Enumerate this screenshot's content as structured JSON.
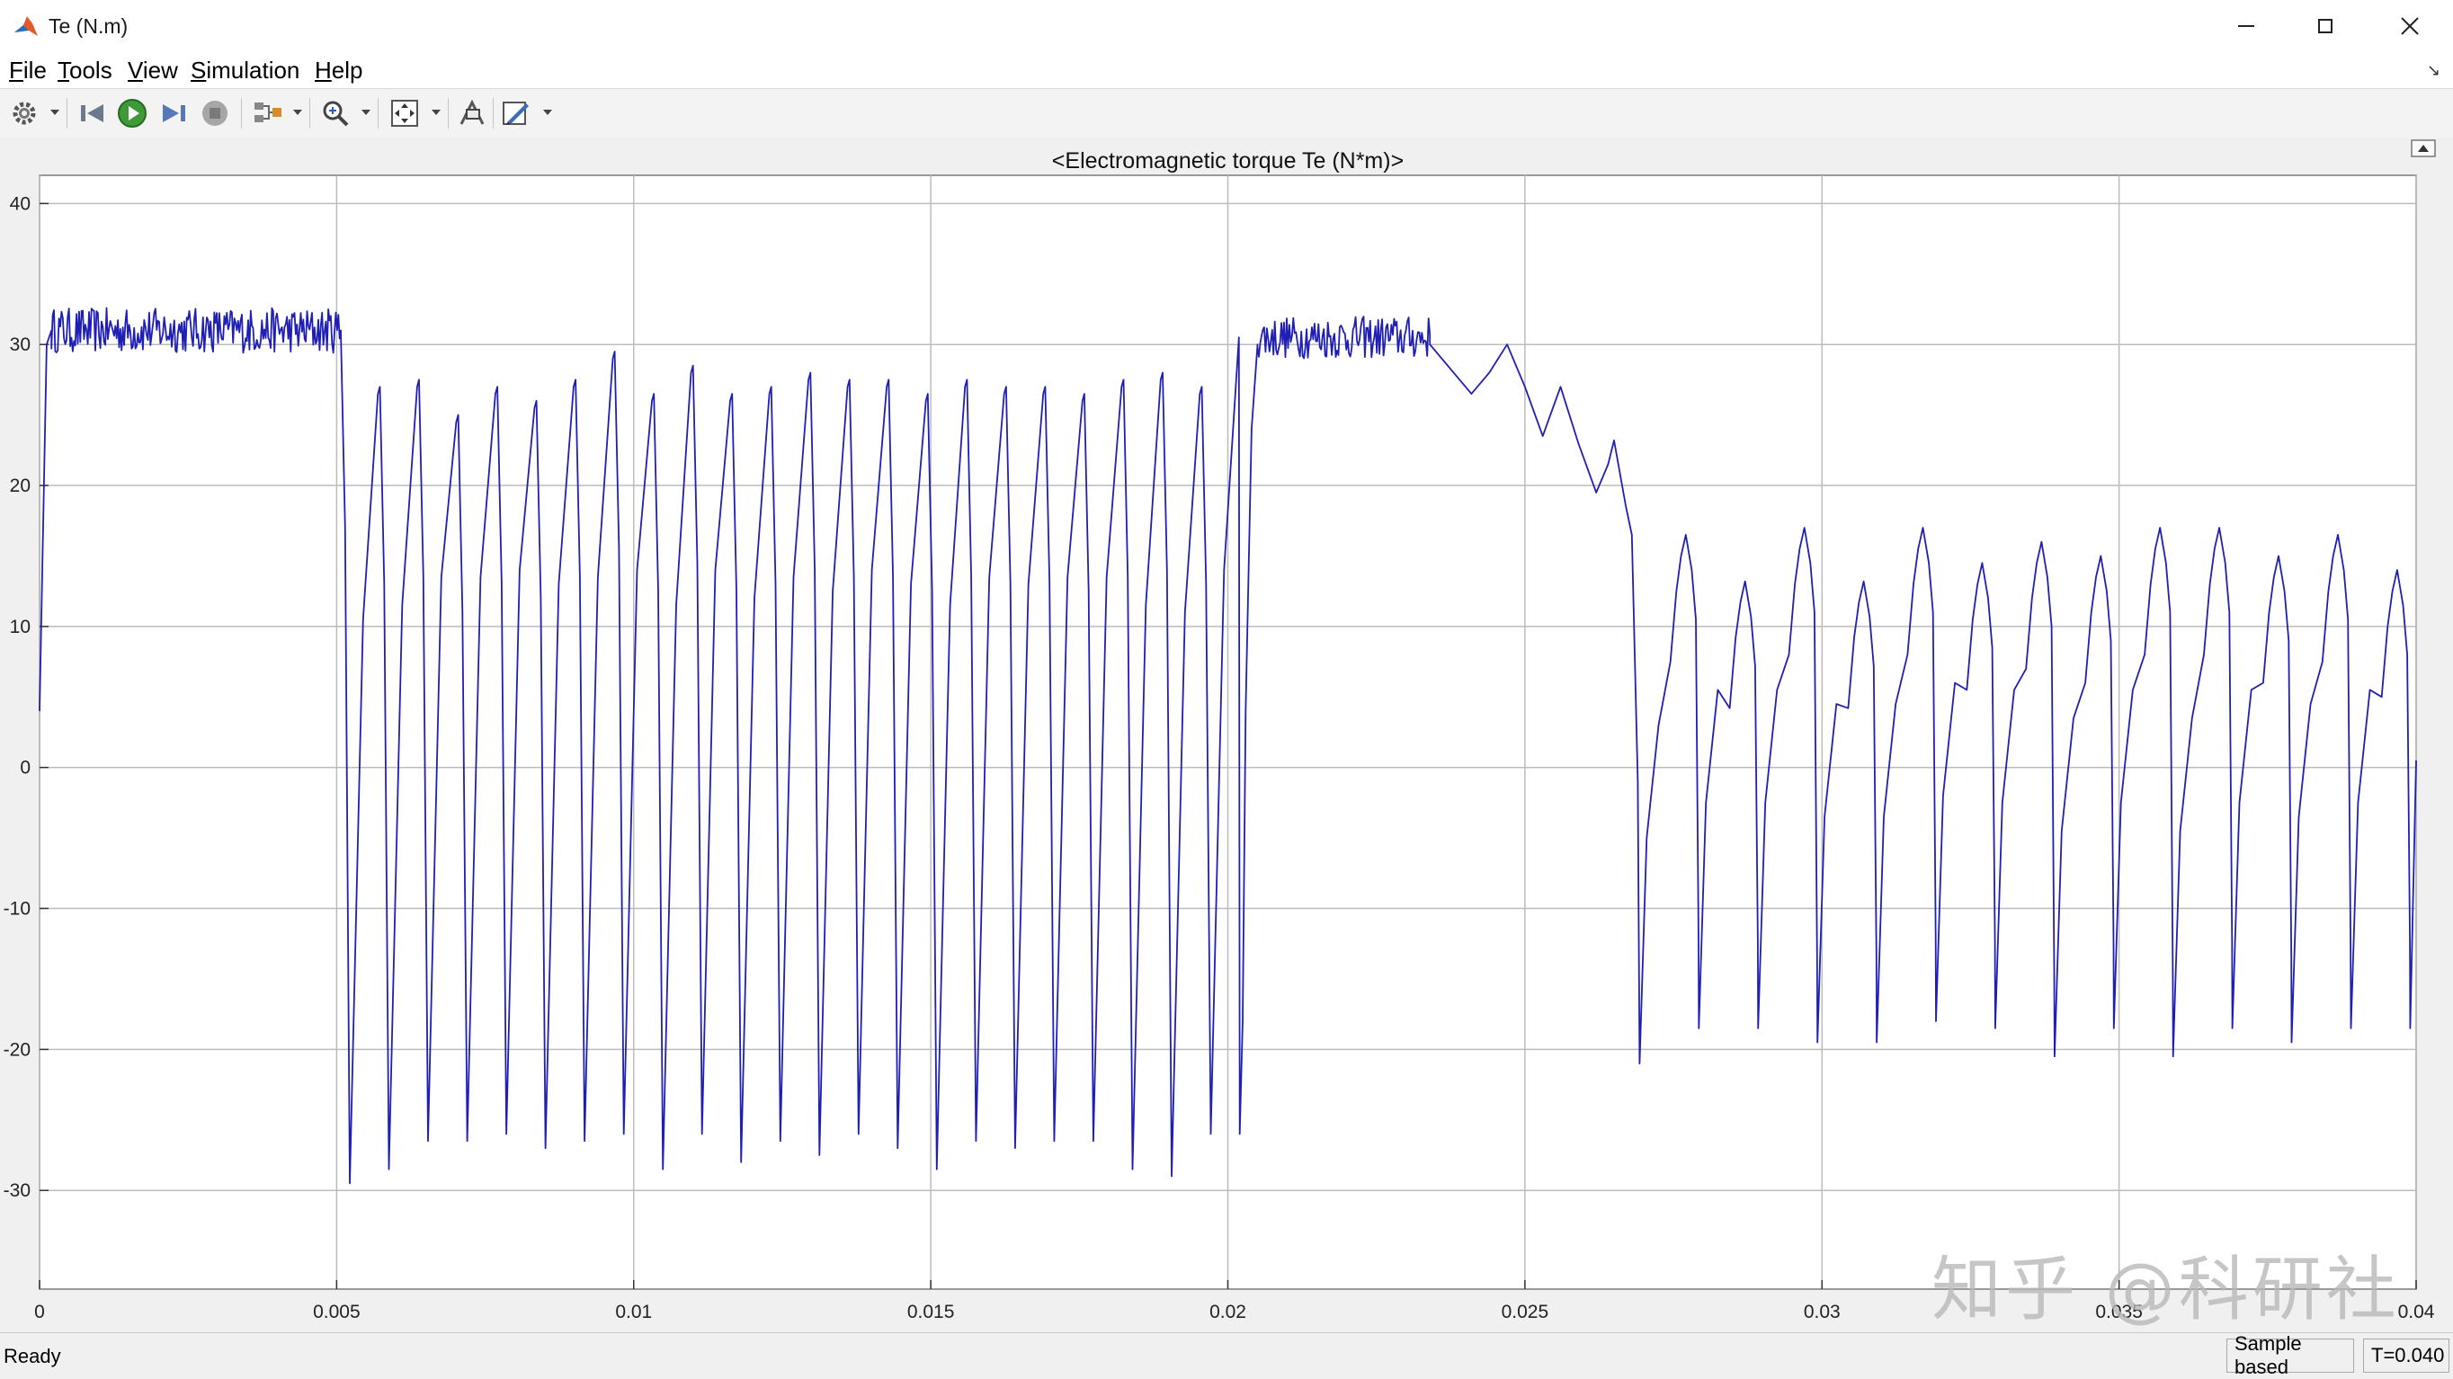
{
  "window": {
    "title": "Te (N.m)"
  },
  "menu": [
    {
      "label": "File",
      "u": "F",
      "rest": "ile"
    },
    {
      "label": "Tools",
      "u": "T",
      "rest": "ools"
    },
    {
      "label": "View",
      "u": "V",
      "rest": "iew"
    },
    {
      "label": "Simulation",
      "u": "S",
      "rest": "imulation"
    },
    {
      "label": "Help",
      "u": "H",
      "rest": "elp"
    }
  ],
  "toolbar": {
    "icons": [
      "gear-icon",
      "step-back-icon",
      "run-icon",
      "step-forward-icon",
      "stop-icon",
      "highlight-block-icon",
      "zoom-icon",
      "autoscale-icon",
      "restore-view-icon",
      "style-icon"
    ]
  },
  "status": {
    "text": "Ready",
    "mode": "Sample based",
    "time": "T=0.040"
  },
  "watermark": "知乎 @科研社",
  "colors": {
    "trace": "#1f1fb5",
    "grid": "#bcbcbc",
    "axes_bg": "#ffffff"
  },
  "chart_data": {
    "type": "line",
    "title": "<Electromagnetic torque Te (N*m)>",
    "xlabel": "",
    "ylabel": "",
    "xlim": [
      0,
      0.04
    ],
    "ylim": [
      -37,
      42
    ],
    "xticks": [
      0,
      0.005,
      0.01,
      0.015,
      0.02,
      0.025,
      0.03,
      0.035,
      0.04
    ],
    "xtick_labels": [
      "0",
      "0.005",
      "0.01",
      "0.015",
      "0.02",
      "0.025",
      "0.03",
      "0.035",
      "0.04"
    ],
    "yticks": [
      40,
      30,
      20,
      10,
      0,
      -10,
      -20,
      -30
    ],
    "ytick_labels": [
      "40",
      "30",
      "20",
      "10",
      "0",
      "-10",
      "-20",
      "-30"
    ],
    "grid": true,
    "series": [
      {
        "segments": [
          {
            "kind": "line",
            "points": [
              [
                0,
                4
              ],
              [
                0.00012,
                30
              ],
              [
                0.0002,
                31
              ]
            ]
          },
          {
            "kind": "noise",
            "start": 0.0002,
            "end": 0.00505,
            "center": 31,
            "amp": 1.6,
            "count": 230
          },
          {
            "kind": "osc",
            "start": 0.00505,
            "end": 0.0202,
            "peaks": [
              31,
              27,
              27.5,
              25,
              27,
              26,
              27.5,
              29.5,
              26.5,
              28.5,
              26.5,
              27,
              28,
              27.5,
              27.5,
              26.5,
              27.5,
              27,
              27,
              26.5,
              27.5,
              28,
              27
            ],
            "troughs": [
              -29.5,
              -28.5,
              -26.5,
              -26.5,
              -26,
              -27,
              -26.5,
              -26,
              -28.5,
              -26,
              -28,
              -26.5,
              -27.5,
              -26,
              -27,
              -28.5,
              -26.5,
              -27,
              -26.5,
              -26.5,
              -28.5,
              -29,
              -26
            ]
          },
          {
            "kind": "line",
            "points": [
              [
                0.0202,
                -26
              ],
              [
                0.02025,
                -18
              ],
              [
                0.0203,
                4
              ],
              [
                0.0204,
                24
              ],
              [
                0.0205,
                30
              ]
            ]
          },
          {
            "kind": "noise",
            "start": 0.0205,
            "end": 0.0234,
            "center": 30.5,
            "amp": 1.5,
            "count": 130
          },
          {
            "kind": "line",
            "points": [
              [
                0.0234,
                30
              ],
              [
                0.0238,
                28
              ],
              [
                0.0241,
                26.5
              ],
              [
                0.0244,
                28
              ],
              [
                0.0247,
                30
              ],
              [
                0.025,
                27
              ],
              [
                0.0253,
                23.5
              ],
              [
                0.0256,
                27
              ],
              [
                0.0259,
                23
              ],
              [
                0.0262,
                19.5
              ],
              [
                0.0264,
                21.5
              ],
              [
                0.0265,
                23.2
              ],
              [
                0.0267,
                18.5
              ],
              [
                0.0268,
                16.5
              ],
              [
                0.0269,
                -1
              ],
              [
                0.02693,
                -21
              ]
            ]
          },
          {
            "kind": "saw",
            "start": 0.02693,
            "end": 0.0399,
            "peaks": [
              16.5,
              13.2,
              17,
              13.2,
              17,
              14.5,
              16,
              15,
              17,
              17,
              15,
              16.5,
              14
            ],
            "troughs": [
              -21,
              -18.5,
              -18.5,
              -19.5,
              -19.5,
              -18,
              -18.5,
              -20.5,
              -18.5,
              -20.5,
              -18.5,
              -19.5,
              -18.5
            ]
          },
          {
            "kind": "line",
            "points": [
              [
                0.0399,
                -18.5
              ],
              [
                0.04,
                0.5
              ]
            ]
          }
        ]
      }
    ]
  }
}
